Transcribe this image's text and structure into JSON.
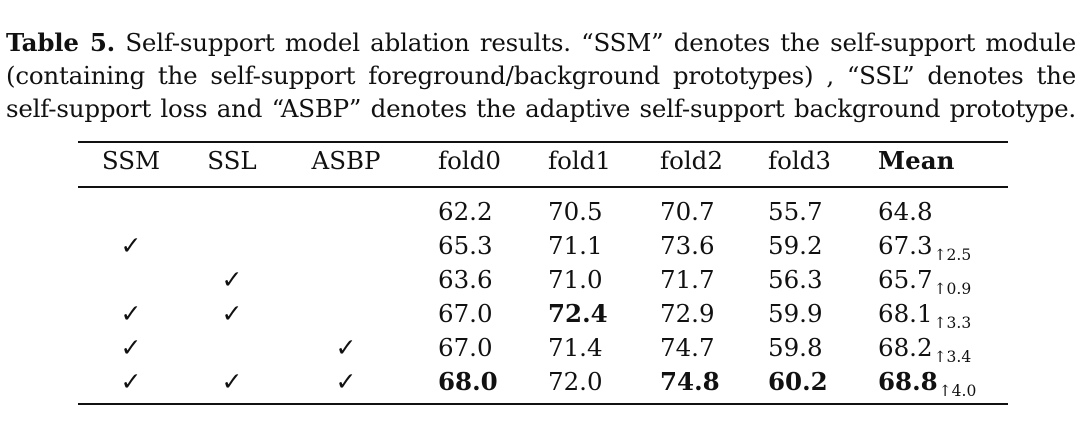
{
  "caption": {
    "label": "Table 5.",
    "line1_text": " Self-support model ablation results. “SSM” denotes the self-support module",
    "line2_text": "(containing the self-support foreground/background prototypes) , “SSL” denotes the",
    "line3_text": "self-support loss and “ASBP” denotes the adaptive self-support background prototype."
  },
  "table": {
    "headers": [
      "SSM",
      "SSL",
      "ASBP",
      "fold0",
      "fold1",
      "fold2",
      "fold3",
      "Mean"
    ],
    "check_mark": "✓",
    "rows": [
      {
        "ssm": "",
        "ssl": "",
        "asbp": "",
        "fold0": "62.2",
        "fold1": "70.5",
        "fold2": "70.7",
        "fold3": "55.7",
        "mean": "64.8",
        "delta": ""
      },
      {
        "ssm": "✓",
        "ssl": "",
        "asbp": "",
        "fold0": "65.3",
        "fold1": "71.1",
        "fold2": "73.6",
        "fold3": "59.2",
        "mean": "67.3",
        "delta": "↑2.5"
      },
      {
        "ssm": "",
        "ssl": "✓",
        "asbp": "",
        "fold0": "63.6",
        "fold1": "71.0",
        "fold2": "71.7",
        "fold3": "56.3",
        "mean": "65.7",
        "delta": "↑0.9"
      },
      {
        "ssm": "✓",
        "ssl": "✓",
        "asbp": "",
        "fold0": "67.0",
        "fold1": "72.4",
        "fold2": "72.9",
        "fold3": "59.9",
        "mean": "68.1",
        "delta": "↑3.3"
      },
      {
        "ssm": "✓",
        "ssl": "",
        "asbp": "✓",
        "fold0": "67.0",
        "fold1": "71.4",
        "fold2": "74.7",
        "fold3": "59.8",
        "mean": "68.2",
        "delta": "↑3.4"
      },
      {
        "ssm": "✓",
        "ssl": "✓",
        "asbp": "✓",
        "fold0": "68.0",
        "fold1": "72.0",
        "fold2": "74.8",
        "fold3": "60.2",
        "mean": "68.8",
        "delta": "↑4.0"
      }
    ]
  }
}
